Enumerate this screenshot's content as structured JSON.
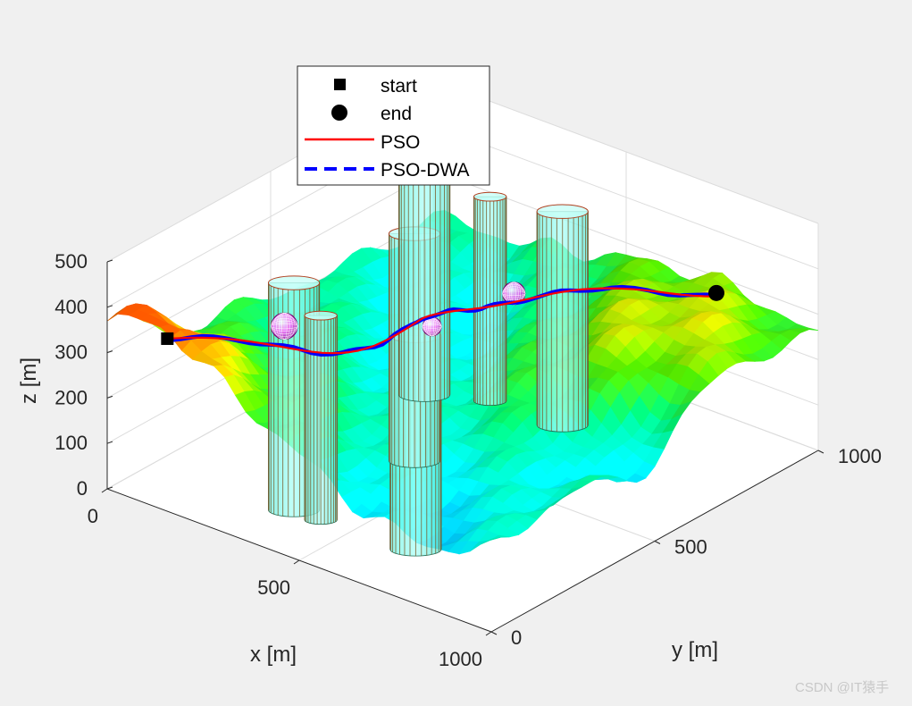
{
  "chart_data": {
    "type": "3d-surface-paths",
    "xlabel": "x [m]",
    "ylabel": "y [m]",
    "zlabel": "z [m]",
    "xlim": [
      0,
      1000
    ],
    "ylim": [
      0,
      1000
    ],
    "zlim": [
      0,
      500
    ],
    "xticks": [
      "0",
      "500",
      "1000"
    ],
    "yticks": [
      "0",
      "500",
      "1000"
    ],
    "zticks": [
      "0",
      "100",
      "200",
      "300",
      "400",
      "500"
    ],
    "grid": true,
    "legend": {
      "position": "top-center",
      "entries": [
        "start",
        "end",
        "PSO",
        "PSO-DWA"
      ]
    },
    "colors": {
      "pso": "#ff0000",
      "pso_dwa": "#0000ff",
      "cylinder": "#7fffef",
      "obstacle_sphere": "#ff00ff"
    },
    "start": {
      "x": 80,
      "y": 90,
      "z": 320
    },
    "end": {
      "x": 820,
      "y": 900,
      "z": 330
    },
    "cylinders": [
      {
        "x": 350,
        "y": 160,
        "radius": 55,
        "height": 500
      },
      {
        "x": 420,
        "y": 160,
        "radius": 35,
        "height": 450
      },
      {
        "x": 650,
        "y": 180,
        "radius": 55,
        "height": 470
      },
      {
        "x": 400,
        "y": 470,
        "radius": 55,
        "height": 500
      },
      {
        "x": 230,
        "y": 700,
        "radius": 55,
        "height": 500
      },
      {
        "x": 350,
        "y": 760,
        "radius": 35,
        "height": 450
      },
      {
        "x": 530,
        "y": 770,
        "radius": 55,
        "height": 470
      }
    ],
    "spheres": [
      {
        "x": 240,
        "y": 260,
        "z": 330,
        "radius": 35
      },
      {
        "x": 420,
        "y": 500,
        "z": 290,
        "radius": 25
      },
      {
        "x": 480,
        "y": 680,
        "z": 310,
        "radius": 30
      }
    ]
  },
  "watermark": "CSDN @IT猿手"
}
